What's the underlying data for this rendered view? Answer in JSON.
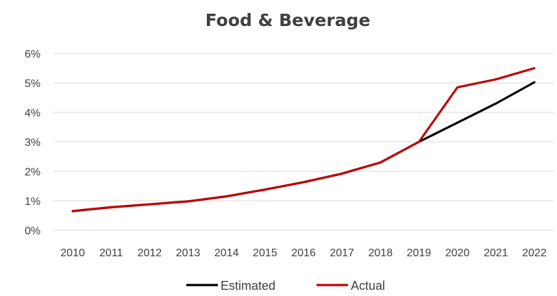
{
  "chart_data": {
    "type": "line",
    "title": "Food & Beverage",
    "xlabel": "",
    "ylabel": "",
    "categories": [
      "2010",
      "2011",
      "2012",
      "2013",
      "2014",
      "2015",
      "2016",
      "2017",
      "2018",
      "2019",
      "2020",
      "2021",
      "2022"
    ],
    "y_ticks": [
      "0%",
      "1%",
      "2%",
      "3%",
      "4%",
      "5%",
      "6%"
    ],
    "ylim": [
      0,
      6
    ],
    "grid": true,
    "legend_position": "bottom",
    "series": [
      {
        "name": "Estimated",
        "color": "#000000",
        "values": [
          0.65,
          0.78,
          0.88,
          0.98,
          1.15,
          1.38,
          1.63,
          1.92,
          2.3,
          3.0,
          3.65,
          4.3,
          5.02
        ]
      },
      {
        "name": "Actual",
        "color": "#c00000",
        "values": [
          0.65,
          0.78,
          0.88,
          0.98,
          1.15,
          1.38,
          1.63,
          1.92,
          2.3,
          3.0,
          4.85,
          5.12,
          5.5
        ]
      }
    ]
  }
}
